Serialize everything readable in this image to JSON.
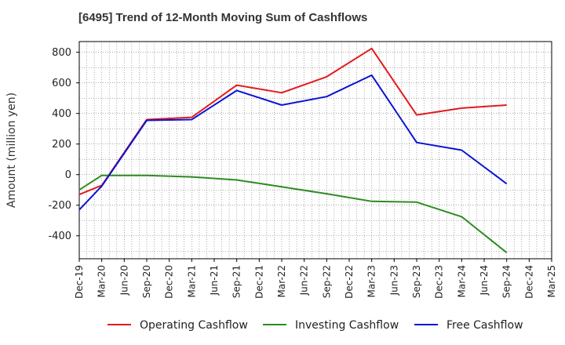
{
  "chart_data": {
    "type": "line",
    "title": "[6495]  Trend of 12-Month Moving Sum of Cashflows",
    "xlabel": "",
    "ylabel": "Amount (million yen)",
    "ylim": [
      -550,
      870
    ],
    "yticks": [
      -400,
      -200,
      0,
      200,
      400,
      600,
      800
    ],
    "grid": true,
    "legend_position": "bottom",
    "categories": [
      "Dec-19",
      "Mar-20",
      "Jun-20",
      "Sep-20",
      "Dec-20",
      "Mar-21",
      "Jun-21",
      "Sep-21",
      "Dec-21",
      "Mar-22",
      "Jun-22",
      "Sep-22",
      "Dec-22",
      "Mar-23",
      "Jun-23",
      "Sep-23",
      "Dec-23",
      "Mar-24",
      "Jun-24",
      "Sep-24",
      "Dec-24",
      "Mar-25"
    ],
    "series": [
      {
        "name": "Operating Cashflow",
        "color": "#e31a1c",
        "values": [
          -130,
          -70,
          null,
          360,
          null,
          375,
          null,
          585,
          null,
          535,
          null,
          640,
          null,
          825,
          null,
          390,
          null,
          435,
          null,
          455,
          null,
          null
        ]
      },
      {
        "name": "Investing Cashflow",
        "color": "#2e8b22",
        "values": [
          -100,
          -5,
          null,
          -5,
          null,
          -15,
          null,
          -35,
          null,
          -80,
          null,
          -125,
          null,
          -175,
          null,
          -180,
          null,
          -275,
          null,
          -510,
          null,
          null
        ]
      },
      {
        "name": "Free Cashflow",
        "color": "#0a14d2",
        "values": [
          -230,
          -75,
          null,
          355,
          null,
          360,
          null,
          550,
          null,
          455,
          null,
          510,
          null,
          650,
          null,
          210,
          null,
          160,
          null,
          -60,
          null,
          null
        ]
      }
    ]
  }
}
